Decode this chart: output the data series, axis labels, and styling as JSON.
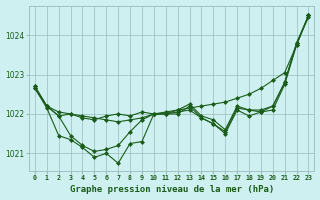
{
  "background_color": "#cff0f0",
  "grid_color": "#99bbbb",
  "line_color": "#1a5c1a",
  "title": "Graphe pression niveau de la mer (hPa)",
  "title_fontsize": 6.5,
  "xlim": [
    -0.5,
    23.5
  ],
  "ylim": [
    1020.55,
    1024.75
  ],
  "yticks": [
    1021,
    1022,
    1023,
    1024
  ],
  "xtick_labels": [
    "0",
    "1",
    "2",
    "3",
    "4",
    "5",
    "6",
    "7",
    "8",
    "9",
    "10",
    "11",
    "12",
    "13",
    "14",
    "15",
    "16",
    "17",
    "18",
    "19",
    "20",
    "21",
    "22",
    "23"
  ],
  "series": [
    [
      1022.7,
      1022.2,
      1022.05,
      1022.0,
      1021.95,
      1021.9,
      1021.85,
      1021.8,
      1021.85,
      1021.9,
      1022.0,
      1022.05,
      1022.1,
      1022.15,
      1022.2,
      1022.25,
      1022.3,
      1022.4,
      1022.5,
      1022.65,
      1022.85,
      1023.05,
      1023.75,
      1024.5
    ],
    [
      1022.7,
      1022.2,
      1021.95,
      1022.0,
      1021.9,
      1021.85,
      1021.95,
      1022.0,
      1021.95,
      1022.05,
      1022.0,
      1022.0,
      1022.05,
      1022.1,
      1021.9,
      1021.75,
      1021.55,
      1022.15,
      1022.1,
      1022.05,
      1022.2,
      1022.8,
      1023.8,
      1024.45
    ],
    [
      1022.65,
      1022.2,
      1021.95,
      1021.45,
      1021.2,
      1021.05,
      1021.1,
      1021.2,
      1021.55,
      1021.85,
      1022.0,
      1022.0,
      1022.1,
      1022.25,
      1021.95,
      1021.85,
      1021.6,
      1022.2,
      1022.1,
      1022.1,
      1022.2,
      1022.8,
      1023.8,
      1024.5
    ],
    [
      1022.65,
      1022.15,
      1021.45,
      1021.35,
      1021.15,
      1020.9,
      1021.0,
      1020.75,
      1021.25,
      1021.3,
      1022.0,
      1022.0,
      1022.0,
      1022.2,
      1021.9,
      1021.75,
      1021.5,
      1022.1,
      1021.95,
      1022.05,
      1022.1,
      1022.75,
      1023.75,
      1024.5
    ]
  ],
  "marker": "D",
  "markersize": 2.0,
  "linewidth": 0.8
}
